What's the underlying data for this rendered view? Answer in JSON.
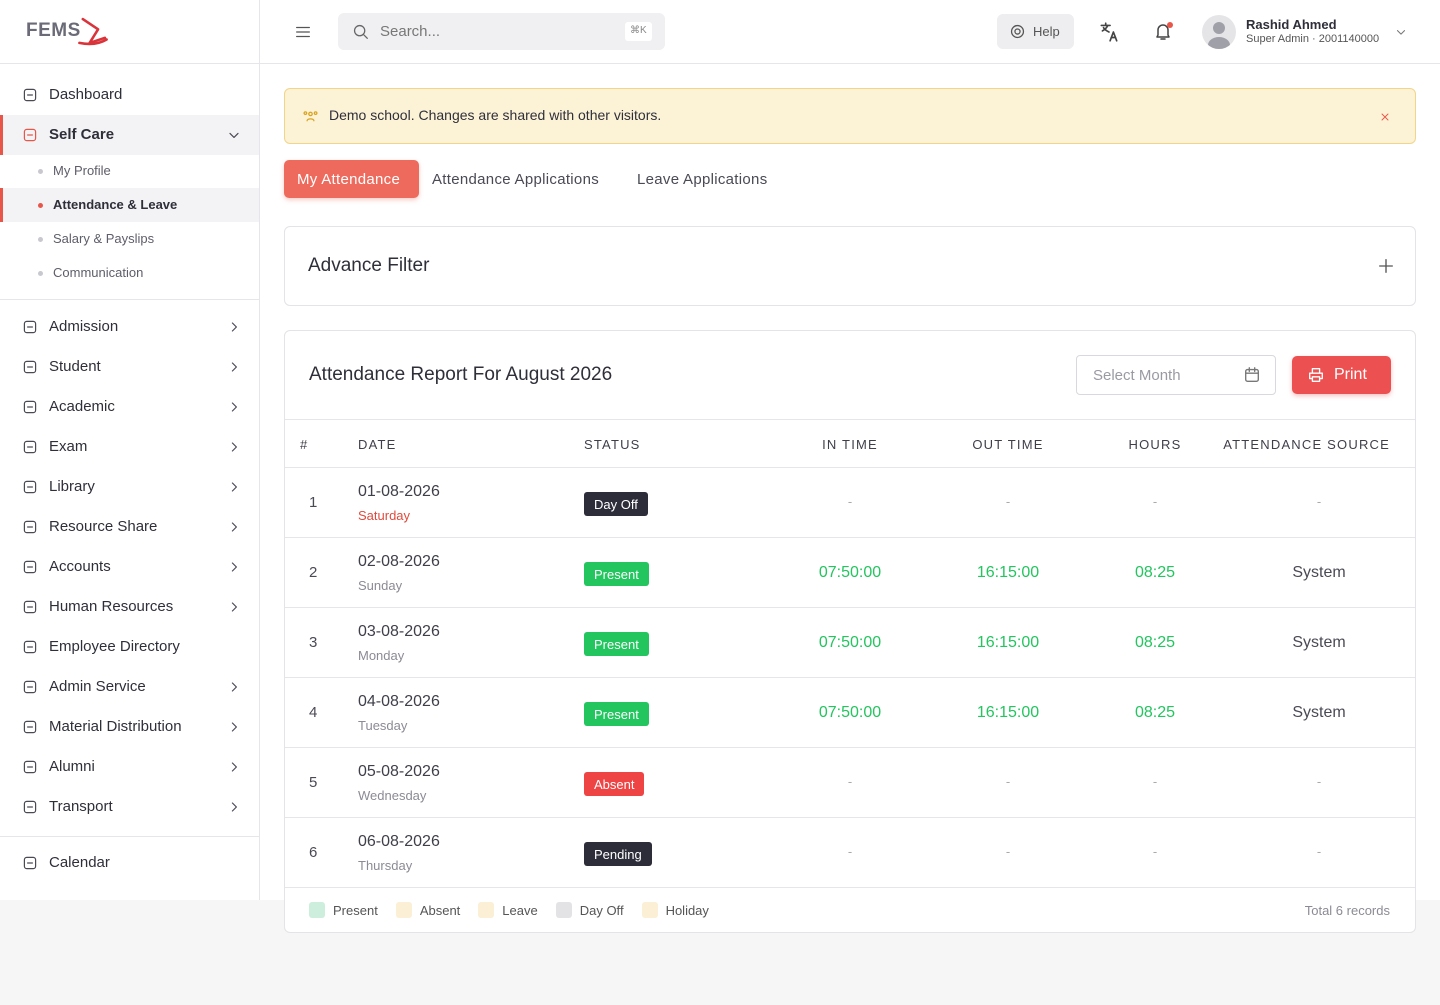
{
  "logo": "FEMS",
  "sidebar": {
    "items": [
      {
        "label": "Dashboard",
        "submenu": false
      },
      {
        "label": "Self Care",
        "submenu": true,
        "open": true,
        "children": [
          {
            "label": "My Profile",
            "active": false
          },
          {
            "label": "Attendance & Leave",
            "active": true
          },
          {
            "label": "Salary & Payslips",
            "active": false
          },
          {
            "label": "Communication",
            "active": false
          }
        ]
      },
      {
        "label": "Admission",
        "submenu": true
      },
      {
        "label": "Student",
        "submenu": true
      },
      {
        "label": "Academic",
        "submenu": true
      },
      {
        "label": "Exam",
        "submenu": true
      },
      {
        "label": "Library",
        "submenu": true
      },
      {
        "label": "Resource Share",
        "submenu": true
      },
      {
        "label": "Accounts",
        "submenu": true
      },
      {
        "label": "Human Resources",
        "submenu": true
      },
      {
        "label": "Employee Directory",
        "submenu": false
      },
      {
        "label": "Admin Service",
        "submenu": true
      },
      {
        "label": "Material Distribution",
        "submenu": true
      },
      {
        "label": "Alumni",
        "submenu": true
      },
      {
        "label": "Transport",
        "submenu": true
      },
      {
        "label": "Calendar",
        "submenu": false
      }
    ]
  },
  "header": {
    "search_placeholder": "Search...",
    "shortcut": "⌘K",
    "help": "Help",
    "user_name": "Rashid Ahmed",
    "user_role": "Super Admin · 2001140000"
  },
  "alert": "Demo school. Changes are shared with other visitors.",
  "tabs": [
    {
      "label": "My Attendance",
      "active": true
    },
    {
      "label": "Attendance Applications",
      "active": false
    },
    {
      "label": "Leave Applications",
      "active": false
    }
  ],
  "filter": {
    "title": "Advance Filter"
  },
  "report": {
    "title": "Attendance Report For August 2026",
    "month_placeholder": "Select Month",
    "print": "Print",
    "columns": [
      "#",
      "DATE",
      "STATUS",
      "IN TIME",
      "OUT TIME",
      "HOURS",
      "ATTENDANCE SOURCE"
    ],
    "rows": [
      {
        "number": 1,
        "date": "01-08-2026",
        "day": "Saturday",
        "day_color": "#e04a3c",
        "status": "Day Off",
        "status_color": "#2d2d3a",
        "in_time": "-",
        "out_time": "-",
        "hours": "-",
        "source": "-"
      },
      {
        "number": 2,
        "date": "02-08-2026",
        "day": "Sunday",
        "day_color": "#8b8b95",
        "status": "Present",
        "status_color": "#22c55e",
        "in_time": "07:50:00",
        "out_time": "16:15:00",
        "hours": "08:25",
        "source": "System"
      },
      {
        "number": 3,
        "date": "03-08-2026",
        "day": "Monday",
        "day_color": "#8b8b95",
        "status": "Present",
        "status_color": "#22c55e",
        "in_time": "07:50:00",
        "out_time": "16:15:00",
        "hours": "08:25",
        "source": "System"
      },
      {
        "number": 4,
        "date": "04-08-2026",
        "day": "Tuesday",
        "day_color": "#8b8b95",
        "status": "Present",
        "status_color": "#22c55e",
        "in_time": "07:50:00",
        "out_time": "16:15:00",
        "hours": "08:25",
        "source": "System"
      },
      {
        "number": 5,
        "date": "05-08-2026",
        "day": "Wednesday",
        "day_color": "#8b8b95",
        "status": "Absent",
        "status_color": "#ef4444",
        "in_time": "-",
        "out_time": "-",
        "hours": "-",
        "source": "-"
      },
      {
        "number": 6,
        "date": "06-08-2026",
        "day": "Thursday",
        "day_color": "#8b8b95",
        "status": "Pending",
        "status_color": "#2d2d3a",
        "in_time": "-",
        "out_time": "-",
        "hours": "-",
        "source": "-"
      }
    ],
    "legend": [
      {
        "label": "Present",
        "color": "#cdeedd"
      },
      {
        "label": "Absent",
        "color": "#fbefd6"
      },
      {
        "label": "Leave",
        "color": "#fbefd6"
      },
      {
        "label": "Day Off",
        "color": "#e3e3e6"
      },
      {
        "label": "Holiday",
        "color": "#fbefd6"
      }
    ],
    "total": "Total 6 records"
  }
}
